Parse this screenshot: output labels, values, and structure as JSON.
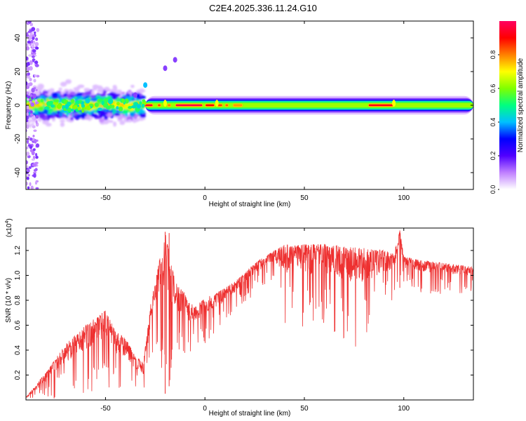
{
  "title": "C2E4.2025.336.11.24.G10",
  "chart_data": [
    {
      "type": "heatmap",
      "name": "spectrogram",
      "xlabel": "Height of straight line (km)",
      "ylabel": "Frequency (Hz)",
      "xlim": [
        -90,
        135
      ],
      "ylim": [
        -50,
        50
      ],
      "xticks": [
        -50,
        0,
        50,
        100
      ],
      "yticks": [
        -40,
        -20,
        0,
        20,
        40
      ],
      "colorbar": {
        "label": "Normalized spectral amplitude",
        "range": [
          0.0,
          1.0
        ],
        "ticks": [
          0.0,
          0.2,
          0.4,
          0.6,
          0.8
        ],
        "tick_labels": [
          "0.0",
          "0.2",
          "0.4",
          "0.6",
          "0.8"
        ],
        "colormap": [
          "#ffffff",
          "#c080ff",
          "#5000ff",
          "#0000ff",
          "#00c0ff",
          "#00ff80",
          "#80ff00",
          "#ffff00",
          "#ff8000",
          "#ff0000",
          "#ff0060"
        ]
      },
      "features": [
        {
          "description": "broadband noisy scatter",
          "x_range": [
            -90,
            -35
          ],
          "freq_center": 0,
          "freq_spread": 8
        },
        {
          "description": "wide vertical scatter near left edge",
          "x_range": [
            -90,
            -84
          ],
          "freq_range": [
            -50,
            50
          ]
        },
        {
          "description": "rising tail",
          "points": [
            [
              -35,
              6
            ],
            [
              -30,
              12
            ],
            [
              -20,
              22
            ],
            [
              -15,
              27
            ]
          ]
        },
        {
          "description": "strong stable carrier",
          "x_range": [
            -30,
            135
          ],
          "freq_center": 0,
          "peak_amplitude": 1.0
        }
      ]
    },
    {
      "type": "line",
      "name": "snr",
      "xlabel": "Height of straight line (km)",
      "ylabel": "SNR (10 * v/v)",
      "multiplier_label": "(x10",
      "multiplier_exp": "4",
      "multiplier_close": ")",
      "xlim": [
        -90,
        135
      ],
      "ylim": [
        0,
        1.38
      ],
      "xticks": [
        -50,
        0,
        50,
        100
      ],
      "yticks": [
        0.2,
        0.4,
        0.6,
        0.8,
        1.0,
        1.2
      ],
      "ytick_labels": [
        "0.2",
        "0.4",
        "0.6",
        "0.8",
        "1.0",
        "1.2"
      ],
      "color": "#ee3030",
      "series": [
        {
          "name": "SNR upper envelope",
          "x": [
            -90,
            -80,
            -70,
            -60,
            -50,
            -45,
            -40,
            -35,
            -31,
            -29,
            -27,
            -25,
            -20,
            -15,
            -10,
            -5,
            0,
            5,
            10,
            15,
            20,
            25,
            30,
            35,
            40,
            45,
            50,
            60,
            70,
            80,
            90,
            95,
            98,
            100,
            110,
            120,
            130,
            135
          ],
          "y": [
            0.02,
            0.22,
            0.45,
            0.6,
            0.72,
            0.55,
            0.5,
            0.35,
            0.3,
            0.55,
            0.8,
            0.95,
            1.35,
            0.95,
            0.85,
            0.75,
            0.82,
            0.85,
            0.9,
            0.95,
            1.02,
            1.1,
            1.15,
            1.2,
            1.25,
            1.24,
            1.25,
            1.25,
            1.23,
            1.22,
            1.2,
            1.18,
            1.36,
            1.15,
            1.12,
            1.1,
            1.08,
            1.07
          ]
        },
        {
          "name": "SNR lower envelope",
          "x": [
            -90,
            -80,
            -70,
            -60,
            -50,
            -45,
            -40,
            -35,
            -31,
            -29,
            -27,
            -25,
            -20,
            -15,
            -10,
            -5,
            0,
            5,
            10,
            15,
            20,
            25,
            30,
            35,
            40,
            45,
            50,
            60,
            70,
            80,
            90,
            95,
            98,
            100,
            110,
            120,
            130,
            135
          ],
          "y": [
            0.0,
            0.0,
            0.02,
            0.05,
            0.05,
            0.05,
            0.06,
            0.06,
            0.04,
            0.15,
            0.3,
            0.45,
            0.05,
            0.2,
            0.3,
            0.35,
            0.45,
            0.5,
            0.6,
            0.7,
            0.78,
            0.85,
            0.92,
            0.98,
            0.5,
            0.75,
            0.55,
            0.6,
            0.45,
            0.4,
            0.7,
            0.8,
            0.9,
            0.9,
            0.85,
            0.85,
            0.85,
            0.88
          ]
        }
      ]
    }
  ]
}
